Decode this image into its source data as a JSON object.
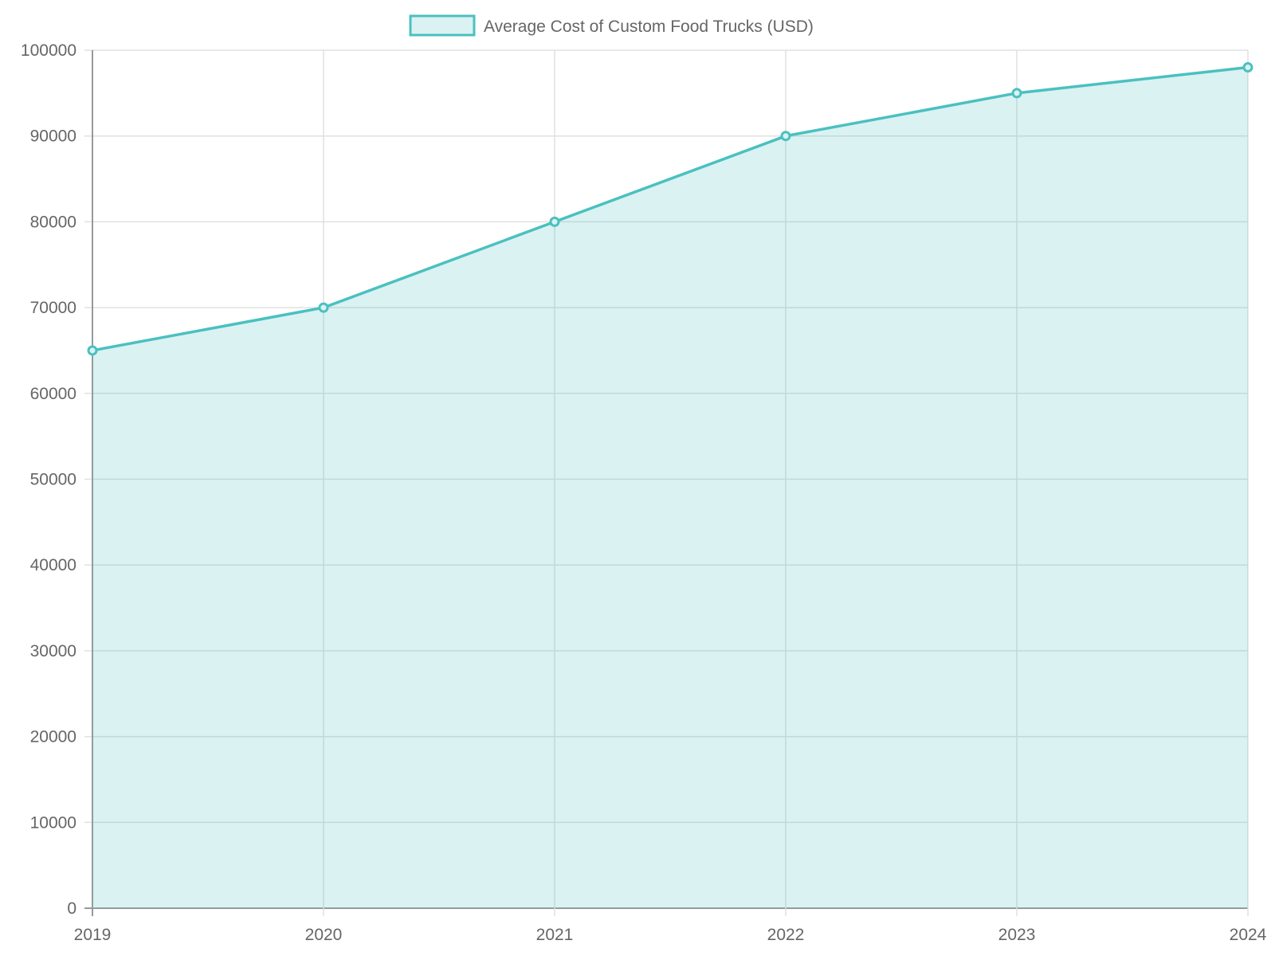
{
  "chart_data": {
    "type": "area",
    "categories": [
      "2019",
      "2020",
      "2021",
      "2022",
      "2023",
      "2024"
    ],
    "series": [
      {
        "name": "Average Cost of Custom Food Trucks (USD)",
        "values": [
          65000,
          70000,
          80000,
          90000,
          95000,
          98000
        ]
      }
    ],
    "ylim": [
      0,
      100000
    ],
    "yticks": [
      "0",
      "10000",
      "20000",
      "30000",
      "40000",
      "50000",
      "60000",
      "70000",
      "80000",
      "90000",
      "100000"
    ],
    "grid": true,
    "legend": "top-center",
    "colors": {
      "line": "#4bc0c0",
      "fill": "#dbf2f2"
    }
  }
}
